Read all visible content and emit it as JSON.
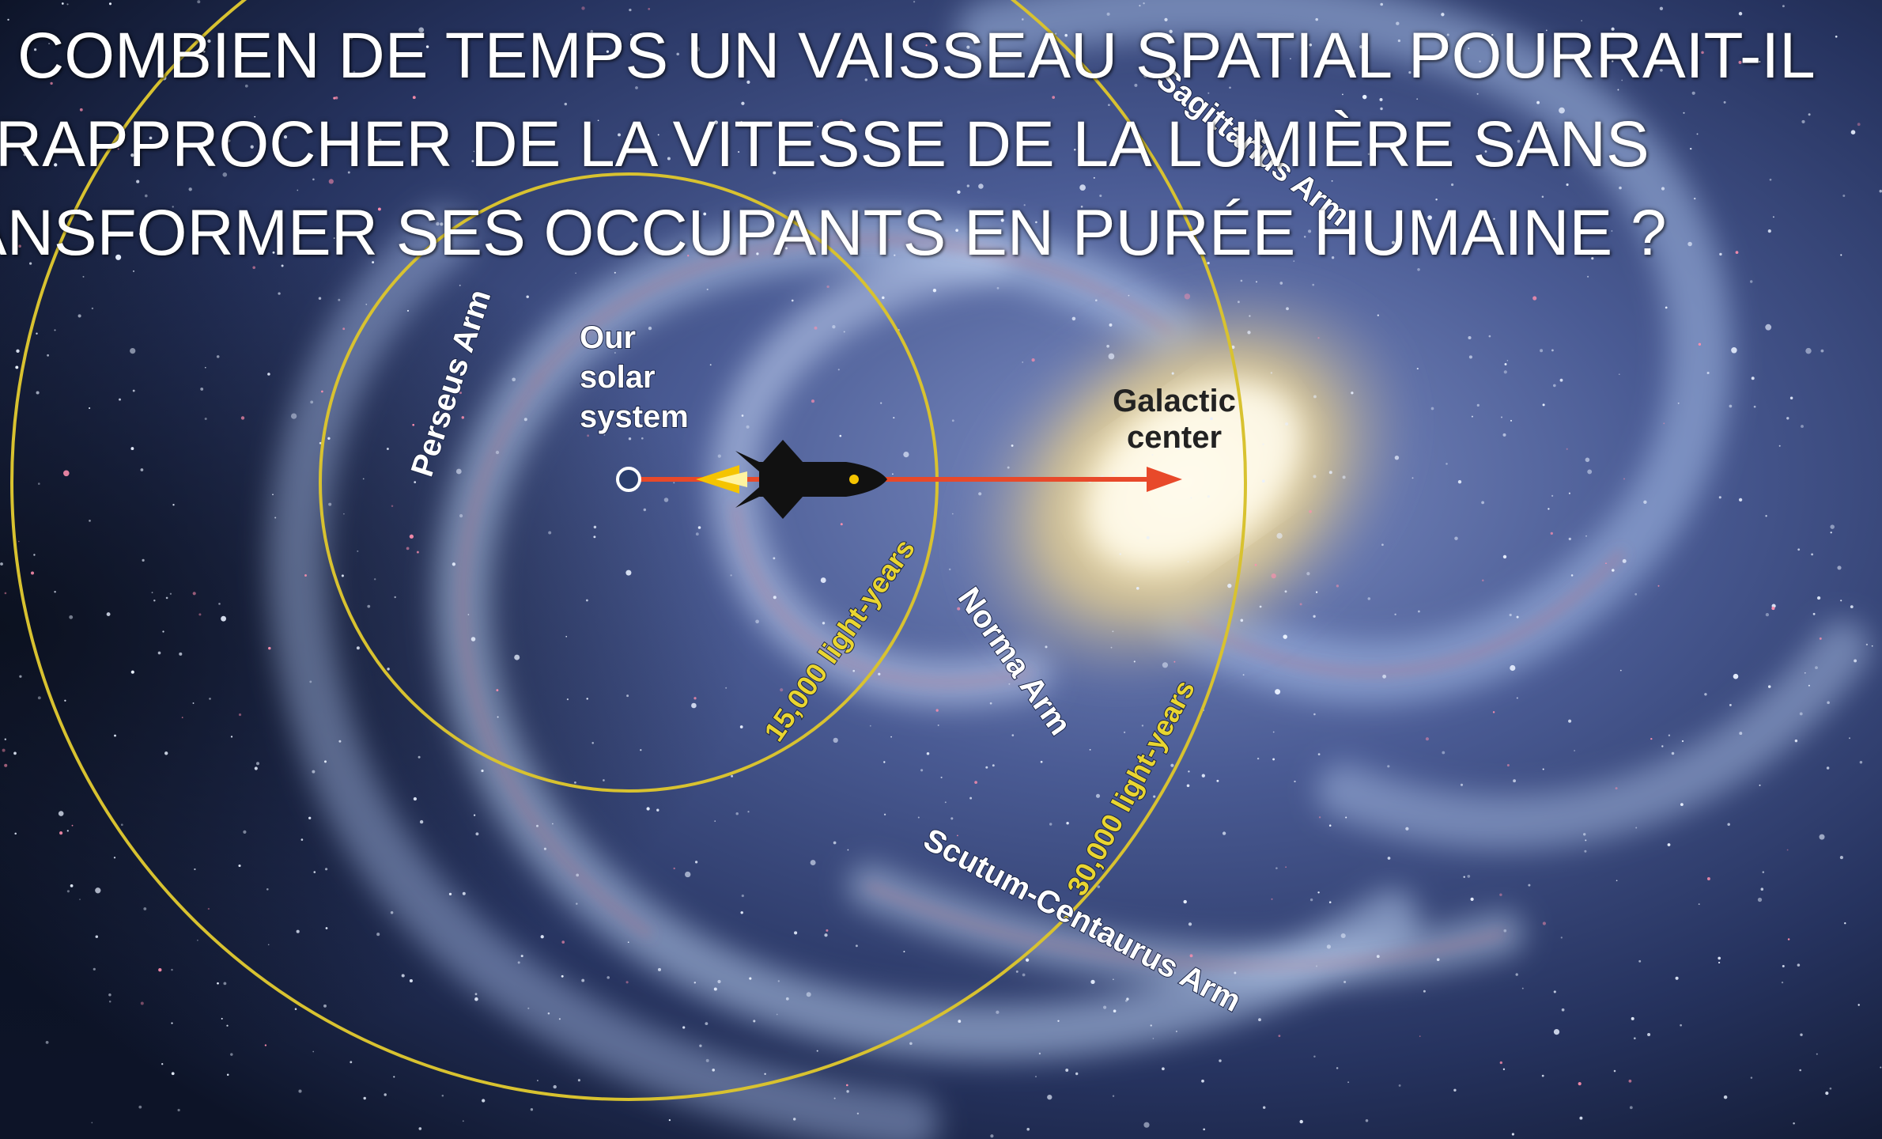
{
  "slide": {
    "title_lines": [
      "COMBIEN DE TEMPS UN VAISSEAU SPATIAL POURRAIT-IL",
      "RAPPROCHER DE LA VITESSE DE LA LUMIÈRE SANS",
      "ANSFORMER SES OCCUPANTS EN PURÉE HUMAINE ?"
    ]
  },
  "diagram": {
    "solar_system_label": [
      "Our",
      "solar",
      "system"
    ],
    "galactic_center_label": [
      "Galactic",
      "center"
    ],
    "arms": {
      "perseus": "Perseus Arm",
      "sagittarius": "Sagittarius Arm",
      "norma": "Norma Arm",
      "scutum_centaurus": "Scutum-Centaurus Arm"
    },
    "rings": {
      "inner": "15,000 light-years",
      "outer": "30,000 light-years"
    },
    "colors": {
      "ring": "#d8c230",
      "arrow": "#e8492a",
      "rocket_body": "#111111",
      "rocket_flame": "#f5c400",
      "galactic_core": "#f6e7b8",
      "title_text": "#ffffff"
    }
  }
}
